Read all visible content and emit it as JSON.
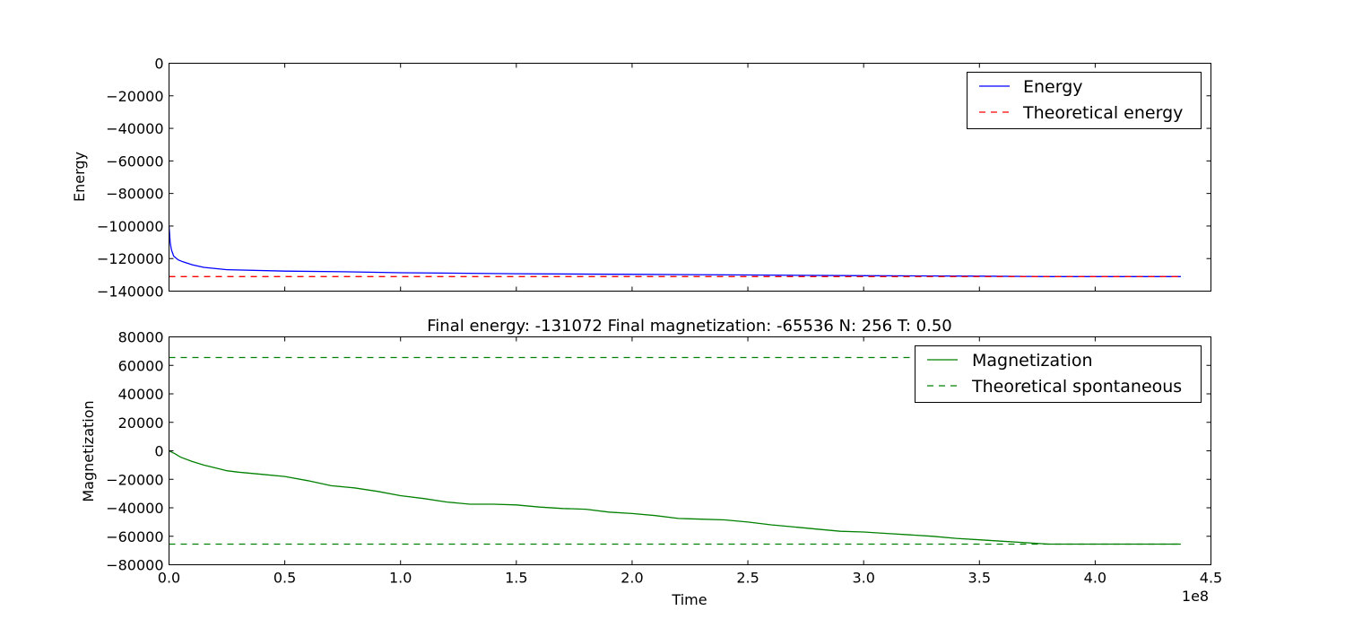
{
  "chart_data": [
    {
      "type": "line",
      "title": "",
      "xlabel": "",
      "ylabel": "Energy",
      "xlim": [
        0,
        450000000
      ],
      "ylim": [
        -140000,
        0
      ],
      "grid": false,
      "legend_position": "top-right",
      "x_tick_labels": [],
      "y_ticks": [
        {
          "value": 0,
          "label": "0"
        },
        {
          "value": -20000,
          "label": "−20000"
        },
        {
          "value": -40000,
          "label": "−40000"
        },
        {
          "value": -60000,
          "label": "−60000"
        },
        {
          "value": -80000,
          "label": "−80000"
        },
        {
          "value": -100000,
          "label": "−100000"
        },
        {
          "value": -120000,
          "label": "−120000"
        },
        {
          "value": -140000,
          "label": "−140000"
        }
      ],
      "series": [
        {
          "name": "Energy",
          "color": "#0000ff",
          "style": "solid",
          "x": [
            0,
            500000,
            1000000,
            2000000,
            4000000,
            6000000,
            10000000,
            15000000,
            25000000,
            50000000,
            75000000,
            100000000,
            150000000,
            200000000,
            250000000,
            300000000,
            350000000,
            380000000,
            437000000
          ],
          "y": [
            -100000,
            -110000,
            -114500,
            -118500,
            -120800,
            -122000,
            -123800,
            -125400,
            -126800,
            -127700,
            -128100,
            -128700,
            -129300,
            -129700,
            -130100,
            -130500,
            -130800,
            -131072,
            -131072
          ]
        },
        {
          "name": "Theoretical energy",
          "color": "#ff0000",
          "style": "dashed",
          "x": [
            0,
            437000000
          ],
          "y": [
            -131072,
            -131072
          ]
        }
      ]
    },
    {
      "type": "line",
      "title": "Final energy: -131072 Final magnetization: -65536 N: 256 T: 0.50",
      "xlabel": "Time",
      "ylabel": "Magnetization",
      "x_offset_label": "1e8",
      "xlim": [
        0,
        450000000
      ],
      "ylim": [
        -80000,
        80000
      ],
      "grid": false,
      "legend_position": "top-right",
      "x_ticks": [
        {
          "value": 0,
          "label": "0.0"
        },
        {
          "value": 50000000,
          "label": "0.5"
        },
        {
          "value": 100000000,
          "label": "1.0"
        },
        {
          "value": 150000000,
          "label": "1.5"
        },
        {
          "value": 200000000,
          "label": "2.0"
        },
        {
          "value": 250000000,
          "label": "2.5"
        },
        {
          "value": 300000000,
          "label": "3.0"
        },
        {
          "value": 350000000,
          "label": "3.5"
        },
        {
          "value": 400000000,
          "label": "4.0"
        },
        {
          "value": 450000000,
          "label": "4.5"
        }
      ],
      "y_ticks": [
        {
          "value": 80000,
          "label": "80000"
        },
        {
          "value": 60000,
          "label": "60000"
        },
        {
          "value": 40000,
          "label": "40000"
        },
        {
          "value": 20000,
          "label": "20000"
        },
        {
          "value": 0,
          "label": "0"
        },
        {
          "value": -20000,
          "label": "−20000"
        },
        {
          "value": -40000,
          "label": "−40000"
        },
        {
          "value": -60000,
          "label": "−60000"
        },
        {
          "value": -80000,
          "label": "−80000"
        }
      ],
      "series": [
        {
          "name": "Magnetization",
          "color": "#008000",
          "style": "solid",
          "x": [
            0,
            2500000,
            5000000,
            10000000,
            15000000,
            20000000,
            25000000,
            30000000,
            40000000,
            50000000,
            60000000,
            70000000,
            80000000,
            90000000,
            100000000,
            110000000,
            120000000,
            130000000,
            140000000,
            150000000,
            160000000,
            170000000,
            180000000,
            190000000,
            200000000,
            210000000,
            220000000,
            230000000,
            240000000,
            250000000,
            260000000,
            270000000,
            280000000,
            290000000,
            300000000,
            310000000,
            320000000,
            330000000,
            340000000,
            350000000,
            360000000,
            370000000,
            380000000,
            390000000,
            437000000
          ],
          "y": [
            0,
            -2000,
            -4500,
            -7500,
            -10000,
            -12000,
            -14000,
            -15000,
            -16500,
            -18000,
            -21000,
            -24500,
            -26000,
            -28500,
            -31500,
            -33500,
            -36000,
            -37500,
            -37500,
            -38000,
            -39500,
            -40500,
            -41000,
            -43000,
            -44000,
            -45500,
            -47500,
            -48000,
            -48500,
            -50000,
            -52000,
            -53500,
            -55000,
            -56500,
            -57000,
            -58000,
            -59000,
            -60000,
            -61500,
            -62500,
            -63500,
            -64500,
            -65536,
            -65536,
            -65536
          ]
        },
        {
          "name": "Theoretical spontaneous",
          "color": "#008000",
          "style": "dashed",
          "lines": [
            {
              "x": [
                0,
                437000000
              ],
              "y": [
                65536,
                65536
              ]
            },
            {
              "x": [
                0,
                437000000
              ],
              "y": [
                -65536,
                -65536
              ]
            }
          ]
        }
      ]
    }
  ]
}
